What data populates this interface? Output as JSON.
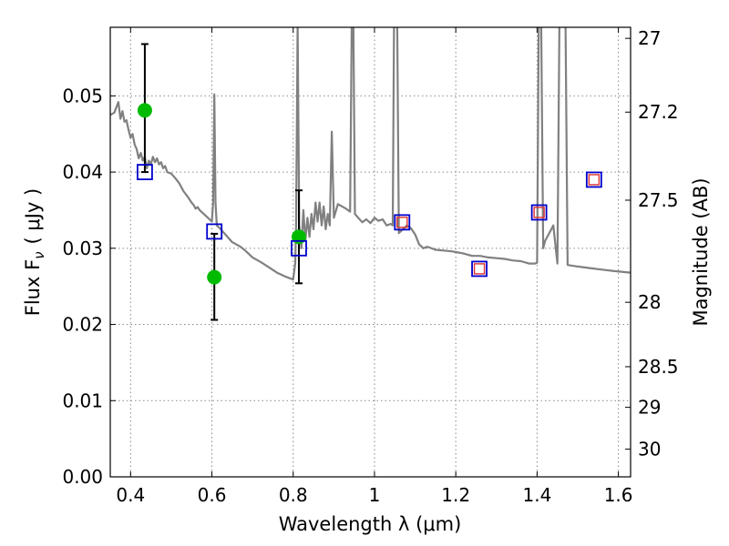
{
  "chart_data": {
    "type": "scatter",
    "title": "",
    "xlabel": "Wavelength  λ (μm)",
    "ylabel": "Flux  F",
    "ylabel_sub": "ν",
    "ylabel_units": "( μJy )",
    "y2label": "Magnitude (AB)",
    "xlim": [
      0.35,
      1.63
    ],
    "ylim": [
      0.0,
      0.059
    ],
    "grid": true,
    "x_ticks": [
      {
        "value": 0.4,
        "label": "0.4"
      },
      {
        "value": 0.6,
        "label": "0.6"
      },
      {
        "value": 0.8,
        "label": "0.8"
      },
      {
        "value": 1.0,
        "label": "1"
      },
      {
        "value": 1.2,
        "label": "1.2"
      },
      {
        "value": 1.4,
        "label": "1.4"
      },
      {
        "value": 1.6,
        "label": "1.6"
      }
    ],
    "y_ticks": [
      {
        "value": 0.0,
        "label": "0.00"
      },
      {
        "value": 0.01,
        "label": "0.01"
      },
      {
        "value": 0.02,
        "label": "0.02"
      },
      {
        "value": 0.03,
        "label": "0.03"
      },
      {
        "value": 0.04,
        "label": "0.04"
      },
      {
        "value": 0.05,
        "label": "0.05"
      }
    ],
    "y2_ticks": [
      {
        "mag": 27,
        "label": "27"
      },
      {
        "mag": 27.2,
        "label": "27.2"
      },
      {
        "mag": 27.5,
        "label": "27.5"
      },
      {
        "mag": 28,
        "label": "28"
      },
      {
        "mag": 28.5,
        "label": "28.5"
      },
      {
        "mag": 29,
        "label": "29"
      },
      {
        "mag": 30,
        "label": "30"
      }
    ],
    "colors": {
      "model": "#808080",
      "observed": "#00bb00",
      "errorbar": "#000000",
      "model_square": "#0000cc",
      "inner_square": "#dd3333"
    },
    "model_spectrum": [
      [
        0.35,
        0.0475
      ],
      [
        0.36,
        0.0478
      ],
      [
        0.365,
        0.0485
      ],
      [
        0.37,
        0.0492
      ],
      [
        0.375,
        0.047
      ],
      [
        0.38,
        0.048
      ],
      [
        0.385,
        0.0466
      ],
      [
        0.39,
        0.0468
      ],
      [
        0.395,
        0.0455
      ],
      [
        0.4,
        0.0445
      ],
      [
        0.405,
        0.045
      ],
      [
        0.41,
        0.0436
      ],
      [
        0.415,
        0.043
      ],
      [
        0.42,
        0.0418
      ],
      [
        0.425,
        0.0425
      ],
      [
        0.43,
        0.0415
      ],
      [
        0.435,
        0.042
      ],
      [
        0.44,
        0.0405
      ],
      [
        0.445,
        0.0415
      ],
      [
        0.45,
        0.041
      ],
      [
        0.455,
        0.042
      ],
      [
        0.46,
        0.0413
      ],
      [
        0.465,
        0.0418
      ],
      [
        0.47,
        0.041
      ],
      [
        0.475,
        0.0413
      ],
      [
        0.48,
        0.0405
      ],
      [
        0.485,
        0.0408
      ],
      [
        0.49,
        0.04
      ],
      [
        0.5,
        0.0398
      ],
      [
        0.51,
        0.0392
      ],
      [
        0.52,
        0.0385
      ],
      [
        0.525,
        0.038
      ],
      [
        0.53,
        0.0375
      ],
      [
        0.54,
        0.0368
      ],
      [
        0.55,
        0.036
      ],
      [
        0.555,
        0.0357
      ],
      [
        0.56,
        0.0352
      ],
      [
        0.565,
        0.0354
      ],
      [
        0.57,
        0.035
      ],
      [
        0.58,
        0.0345
      ],
      [
        0.59,
        0.034
      ],
      [
        0.6,
        0.0335
      ],
      [
        0.603,
        0.036
      ],
      [
        0.606,
        0.0502
      ],
      [
        0.609,
        0.036
      ],
      [
        0.612,
        0.033
      ],
      [
        0.62,
        0.0326
      ],
      [
        0.63,
        0.032
      ],
      [
        0.64,
        0.0314
      ],
      [
        0.65,
        0.0308
      ],
      [
        0.66,
        0.0305
      ],
      [
        0.67,
        0.0302
      ],
      [
        0.68,
        0.0298
      ],
      [
        0.69,
        0.0293
      ],
      [
        0.7,
        0.0288
      ],
      [
        0.72,
        0.0282
      ],
      [
        0.74,
        0.0275
      ],
      [
        0.76,
        0.0268
      ],
      [
        0.78,
        0.0263
      ],
      [
        0.795,
        0.026
      ],
      [
        0.8,
        0.0259
      ],
      [
        0.805,
        0.028
      ],
      [
        0.807,
        0.033
      ],
      [
        0.809,
        0.046
      ],
      [
        0.811,
        0.0595
      ],
      [
        0.813,
        0.046
      ],
      [
        0.815,
        0.033
      ],
      [
        0.82,
        0.03
      ],
      [
        0.825,
        0.035
      ],
      [
        0.83,
        0.031
      ],
      [
        0.835,
        0.034
      ],
      [
        0.84,
        0.0315
      ],
      [
        0.845,
        0.0345
      ],
      [
        0.85,
        0.0325
      ],
      [
        0.855,
        0.036
      ],
      [
        0.86,
        0.0335
      ],
      [
        0.865,
        0.036
      ],
      [
        0.87,
        0.033
      ],
      [
        0.875,
        0.0355
      ],
      [
        0.88,
        0.0325
      ],
      [
        0.885,
        0.0345
      ],
      [
        0.89,
        0.033
      ],
      [
        0.895,
        0.0453
      ],
      [
        0.9,
        0.034
      ],
      [
        0.91,
        0.0358
      ],
      [
        0.92,
        0.0355
      ],
      [
        0.93,
        0.0352
      ],
      [
        0.94,
        0.0348
      ],
      [
        0.944,
        0.0595
      ],
      [
        0.948,
        0.0595
      ],
      [
        0.952,
        0.0345
      ],
      [
        0.96,
        0.034
      ],
      [
        0.97,
        0.0334
      ],
      [
        0.98,
        0.0338
      ],
      [
        0.99,
        0.0333
      ],
      [
        1.0,
        0.034
      ],
      [
        1.01,
        0.0336
      ],
      [
        1.02,
        0.0338
      ],
      [
        1.03,
        0.033
      ],
      [
        1.04,
        0.0332
      ],
      [
        1.045,
        0.033
      ],
      [
        1.048,
        0.0595
      ],
      [
        1.056,
        0.0595
      ],
      [
        1.06,
        0.032
      ],
      [
        1.08,
        0.033
      ],
      [
        1.09,
        0.0326
      ],
      [
        1.1,
        0.0318
      ],
      [
        1.11,
        0.0305
      ],
      [
        1.12,
        0.03
      ],
      [
        1.13,
        0.0302
      ],
      [
        1.15,
        0.0298
      ],
      [
        1.17,
        0.0297
      ],
      [
        1.19,
        0.0296
      ],
      [
        1.2,
        0.0295
      ],
      [
        1.22,
        0.0293
      ],
      [
        1.24,
        0.029
      ],
      [
        1.26,
        0.029
      ],
      [
        1.28,
        0.0288
      ],
      [
        1.3,
        0.0287
      ],
      [
        1.32,
        0.0286
      ],
      [
        1.34,
        0.0284
      ],
      [
        1.36,
        0.0283
      ],
      [
        1.38,
        0.028
      ],
      [
        1.395,
        0.028
      ],
      [
        1.4,
        0.0281
      ],
      [
        1.404,
        0.0595
      ],
      [
        1.41,
        0.0595
      ],
      [
        1.415,
        0.03
      ],
      [
        1.42,
        0.031
      ],
      [
        1.43,
        0.032
      ],
      [
        1.44,
        0.033
      ],
      [
        1.45,
        0.028
      ],
      [
        1.455,
        0.0595
      ],
      [
        1.47,
        0.0595
      ],
      [
        1.475,
        0.0278
      ],
      [
        1.5,
        0.0276
      ],
      [
        1.53,
        0.0274
      ],
      [
        1.56,
        0.0272
      ],
      [
        1.59,
        0.027
      ],
      [
        1.63,
        0.0268
      ]
    ],
    "observed_points": [
      {
        "x": 0.435,
        "y": 0.0481,
        "yerr_low": 0.04,
        "yerr_high": 0.0568
      },
      {
        "x": 0.606,
        "y": 0.0262,
        "yerr_low": 0.0206,
        "yerr_high": 0.0319
      },
      {
        "x": 0.814,
        "y": 0.0315,
        "yerr_low": 0.0254,
        "yerr_high": 0.0376
      }
    ],
    "model_points": [
      {
        "x": 0.435,
        "y": 0.04,
        "inner": false
      },
      {
        "x": 0.606,
        "y": 0.0322,
        "inner": false
      },
      {
        "x": 0.814,
        "y": 0.03,
        "inner": false
      },
      {
        "x": 1.068,
        "y": 0.0334,
        "inner": true
      },
      {
        "x": 1.258,
        "y": 0.0273,
        "inner": true
      },
      {
        "x": 1.405,
        "y": 0.0347,
        "inner": true
      },
      {
        "x": 1.54,
        "y": 0.039,
        "inner": true
      }
    ]
  }
}
